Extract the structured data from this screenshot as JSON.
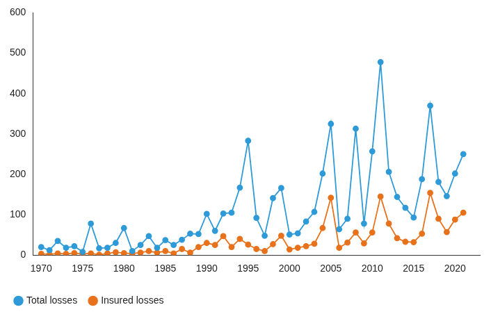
{
  "chart_data": {
    "type": "line",
    "x": [
      1970,
      1971,
      1972,
      1973,
      1974,
      1975,
      1976,
      1977,
      1978,
      1979,
      1980,
      1981,
      1982,
      1983,
      1984,
      1985,
      1986,
      1987,
      1988,
      1989,
      1990,
      1991,
      1992,
      1993,
      1994,
      1995,
      1996,
      1997,
      1998,
      1999,
      2000,
      2001,
      2002,
      2003,
      2004,
      2005,
      2006,
      2007,
      2008,
      2009,
      2010,
      2011,
      2012,
      2013,
      2014,
      2015,
      2016,
      2017,
      2018,
      2019,
      2020,
      2021
    ],
    "series": [
      {
        "name": "Total losses",
        "color": "#2e9ad8",
        "marker": "circle",
        "line_style": "solid",
        "values": [
          20,
          12,
          35,
          18,
          22,
          8,
          78,
          17,
          18,
          30,
          67,
          10,
          25,
          47,
          18,
          37,
          25,
          38,
          53,
          52,
          102,
          60,
          103,
          105,
          167,
          283,
          92,
          48,
          141,
          166,
          51,
          54,
          83,
          107,
          202,
          325,
          64,
          90,
          313,
          78,
          257,
          478,
          206,
          144,
          117,
          93,
          188,
          370,
          181,
          146,
          202,
          250
        ]
      },
      {
        "name": "Insured losses",
        "color": "#e8721c",
        "marker": "circle",
        "line_style": "solid",
        "values": [
          3,
          2,
          4,
          3,
          5,
          3,
          4,
          1,
          4,
          7,
          5,
          4,
          6,
          10,
          6,
          10,
          4,
          15,
          6,
          20,
          30,
          25,
          47,
          20,
          40,
          26,
          15,
          10,
          27,
          48,
          14,
          18,
          22,
          28,
          67,
          142,
          18,
          31,
          56,
          29,
          56,
          145,
          78,
          42,
          33,
          32,
          53,
          154,
          90,
          57,
          88,
          105
        ]
      }
    ],
    "xlim": [
      1969,
      2023
    ],
    "xticks": [
      1970,
      1975,
      1980,
      1985,
      1990,
      1995,
      2000,
      2005,
      2010,
      2015,
      2020
    ],
    "ylim": [
      0,
      600
    ],
    "yticks": [
      0,
      100,
      200,
      300,
      400,
      500,
      600
    ],
    "grid": false,
    "legend": "bottom-left"
  }
}
